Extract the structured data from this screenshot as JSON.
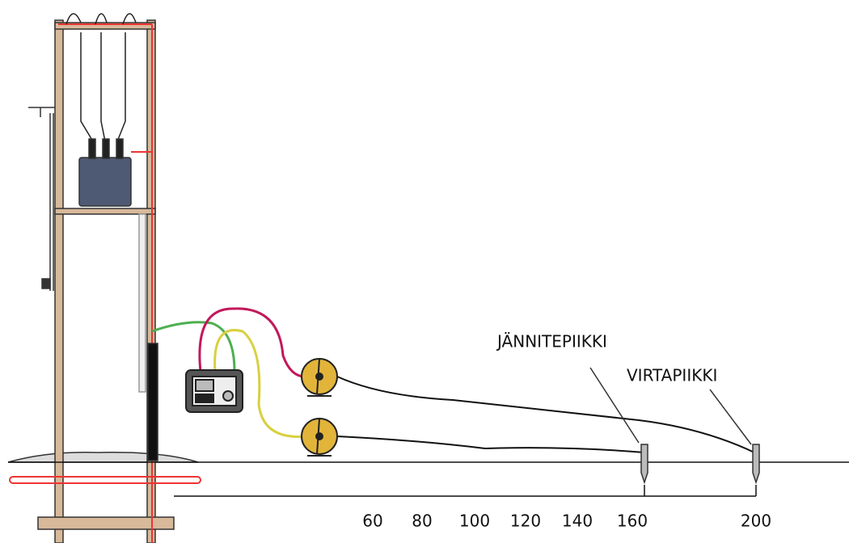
{
  "labels": {
    "voltage_spike": "JÄNNITEPIIKKI",
    "current_spike": "VIRTAPIIKKI"
  },
  "scale": {
    "labels": [
      60,
      80,
      100,
      120,
      140,
      160,
      200
    ]
  }
}
